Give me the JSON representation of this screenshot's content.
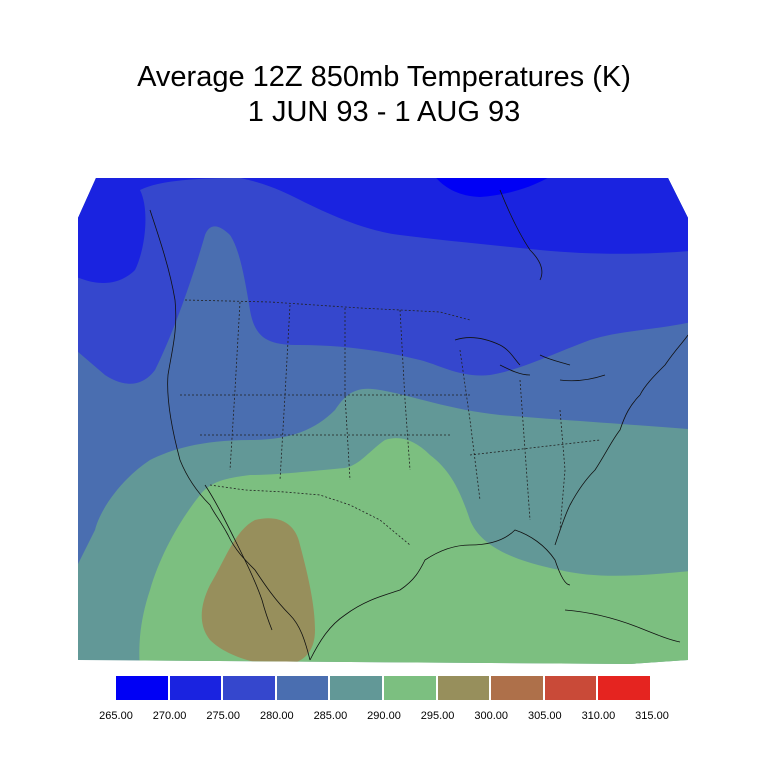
{
  "title_line1": "Average 12Z 850mb Temperatures (K)",
  "title_line2": "1 JUN 93 - 1 AUG 93",
  "map_description_icons": [
    "contour-fill",
    "state-boundaries",
    "coastlines"
  ],
  "colorbar": {
    "colors": [
      "#0000f5",
      "#1a23e0",
      "#3547cd",
      "#4a6eb0",
      "#629897",
      "#7cbf80",
      "#978f5c",
      "#ae704a",
      "#c94a38",
      "#e52420"
    ],
    "labels": [
      "265.00",
      "270.00",
      "275.00",
      "280.00",
      "285.00",
      "290.00",
      "295.00",
      "300.00",
      "305.00",
      "310.00",
      "315.00"
    ]
  },
  "region_colors": {
    "background": "#ffffff",
    "band_270_275": "#1a23e0",
    "band_275_280": "#3547cd",
    "band_280_285": "#4a6eb0",
    "band_285_290": "#629897",
    "band_290_295": "#7cbf80",
    "band_295_300": "#978f5c"
  }
}
